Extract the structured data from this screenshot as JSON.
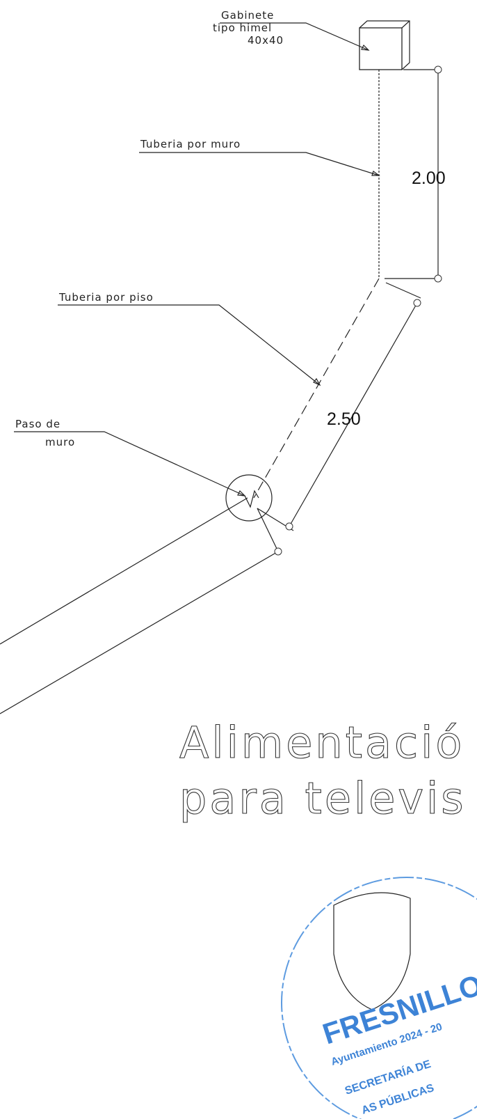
{
  "labels": {
    "cabinet": [
      "Gabinete",
      "tipo himel",
      "40x40"
    ],
    "wall_pipe": "Tuberia por muro",
    "floor_pipe": "Tuberia por piso",
    "wall_pass": [
      "Paso de",
      "muro"
    ]
  },
  "dimensions": {
    "vertical": "2.00",
    "diagonal": "2.50"
  },
  "title": [
    "Alimentació",
    "para televis"
  ],
  "stamp": {
    "name": "FRESNILLO",
    "period": "Ayuntamiento 2024 - 20",
    "office": "SECRETARÍA DE",
    "office2": "AS PÚBLICAS"
  }
}
